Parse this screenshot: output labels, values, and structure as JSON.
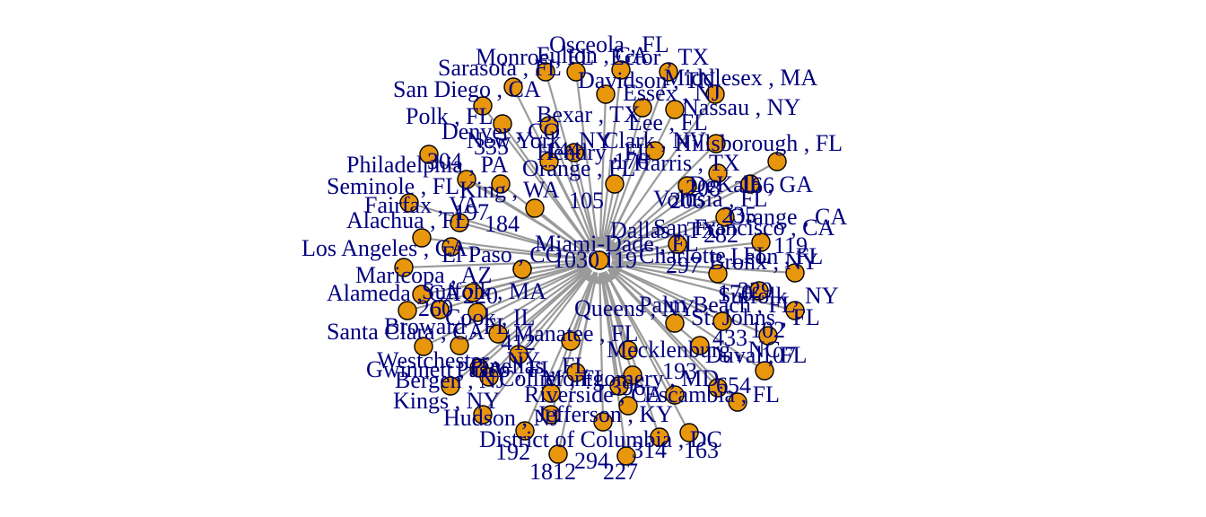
{
  "colors": {
    "edge": "#9a9a9a",
    "node_fill": "#e8960c",
    "node_stroke": "#000000",
    "label": "#00007f",
    "background": "#ffffff"
  },
  "graph": {
    "hub_labels": [
      "Miami-Dade , FL",
      "El Paso , CO"
    ],
    "labels": [
      "Osceola , FL",
      "Monroe , FL",
      "Ector , TX",
      "Fulton , GA",
      "Sarasota , FL",
      "Middlesex , MA",
      "San Diego , CA",
      "Davidson , TN",
      "Bexar , TX",
      "Nassau , NY",
      "Polk , FL",
      "Denver , CO",
      "New York , NY",
      "Lee , FL",
      "Hillsborough , FL",
      "Philadelphia , PA",
      "Orange , FL",
      "Hendry , FL",
      "Harris , TX",
      "Seminole , FL",
      "King , WA",
      "DeKalb , GA",
      "Fairfax , VA",
      "Dallas , TX",
      "Alachua , FL",
      "Orange , CA",
      "Los Angeles , CA",
      "San Francisco , CA",
      "Maricopa , AZ",
      "Charlotte , FL",
      "Leon , FL",
      "Alameda , CA",
      "Suffolk , MA",
      "Bronx , NY",
      "Suffolk , NY",
      "Cook , IL",
      "Palm Beach , FL",
      "Queens , NY",
      "St. Johns , FL",
      "Santa Clara , CA",
      "Broward , FL",
      "Manatee , FL",
      "Mecklenburg , NC",
      "Duval , FL",
      "Westchester , NY",
      "Pinellas , FL",
      "Gwinnett , GA",
      "Montgomery , MD",
      "Collier , FL",
      "Kings , NY",
      "Riverside , CA",
      "Escambia , FL",
      "Hudson , NJ",
      "Jefferson , KY",
      "Pasco , FL",
      "Bergen , NJ",
      "District of Columbia , DC",
      "Volusia , FL",
      "Clark , NV",
      "Essex , NJ"
    ],
    "numbers": [
      "1030",
      "119",
      "105",
      "184",
      "304",
      "144",
      "297",
      "282",
      "260",
      "412",
      "192",
      "294",
      "1812",
      "227",
      "314",
      "163",
      "235",
      "119",
      "170",
      "102",
      "107",
      "229",
      "206",
      "166",
      "208",
      "220",
      "176",
      "197",
      "433",
      "654",
      "335",
      "193",
      "396"
    ]
  }
}
